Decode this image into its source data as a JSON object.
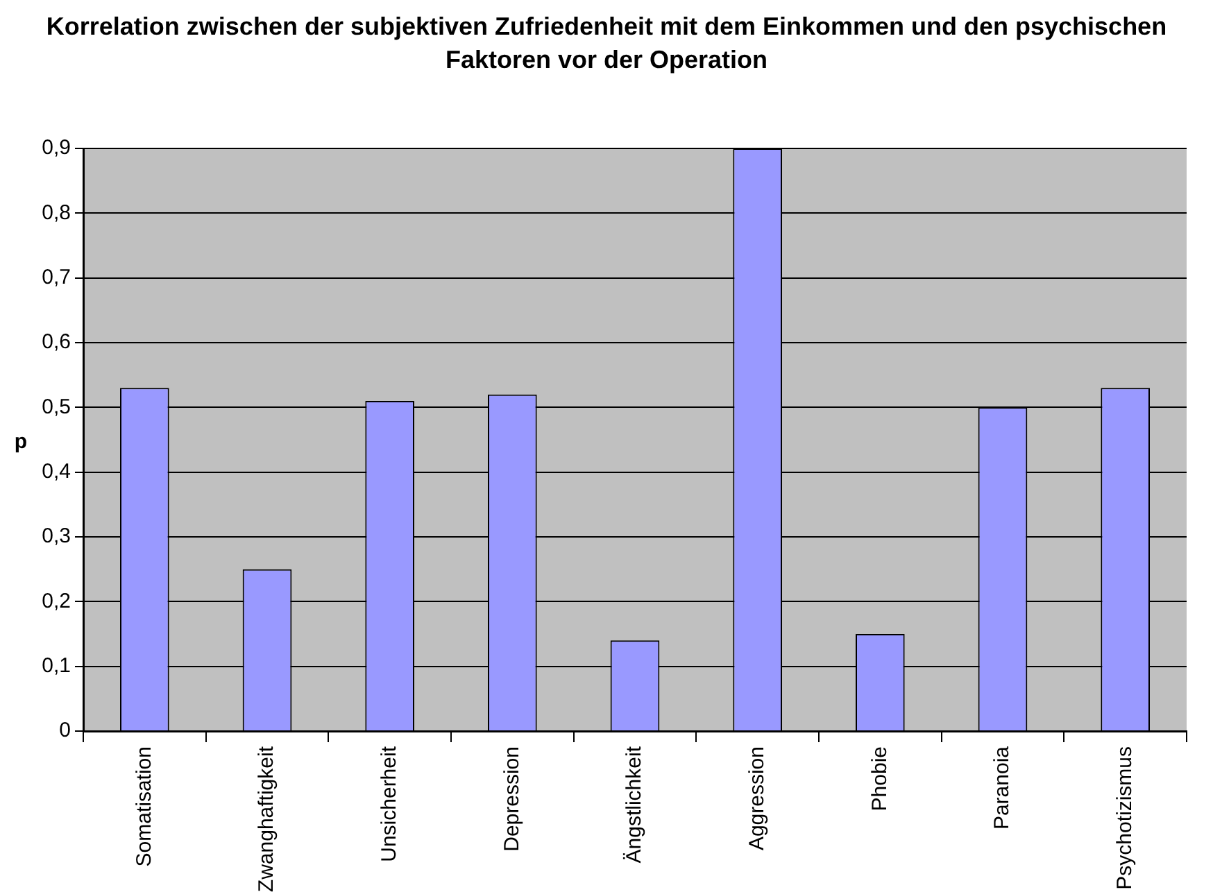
{
  "chart_data": {
    "type": "bar",
    "title": "Korrelation zwischen der subjektiven Zufriedenheit mit dem Einkommen und den psychischen Faktoren vor der Operation",
    "ylabel": "p",
    "categories": [
      "Somatisation",
      "Zwanghaftigkeit",
      "Unsicherheit",
      "Depression",
      "Ängstlichkeit",
      "Aggression",
      "Phobie",
      "Paranoia",
      "Psychotizismus"
    ],
    "values": [
      0.53,
      0.25,
      0.51,
      0.52,
      0.14,
      0.9,
      0.15,
      0.5,
      0.53
    ],
    "color": "#9999ff",
    "ylim": [
      0,
      0.9
    ],
    "yticks": [
      0,
      {
        "value": 0.1,
        "label": "0,1"
      },
      {
        "value": 0.2,
        "label": "0,2"
      },
      {
        "value": 0.3,
        "label": "0,3"
      },
      {
        "value": 0.4,
        "label": "0,4"
      },
      {
        "value": 0.5,
        "label": "0,5"
      },
      {
        "value": 0.6,
        "label": "0,6"
      },
      {
        "value": 0.7,
        "label": "0,7"
      },
      {
        "value": 0.8,
        "label": "0,8"
      },
      {
        "value": 0.9,
        "label": "0,9"
      }
    ],
    "grid": "y"
  }
}
